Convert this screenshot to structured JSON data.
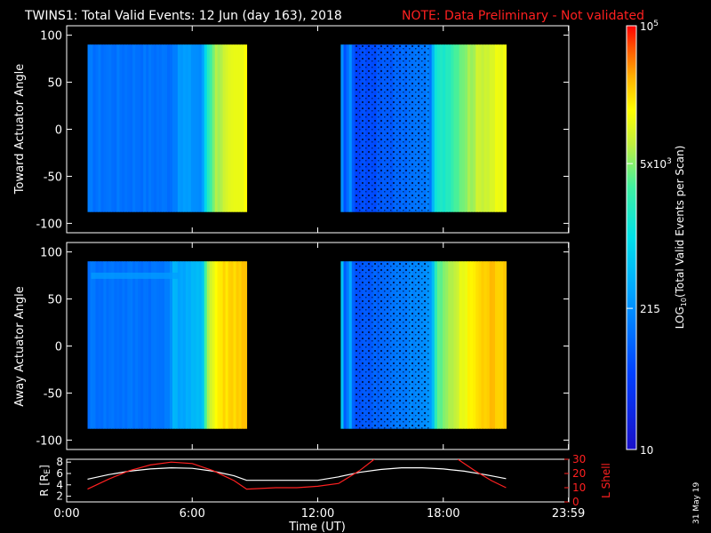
{
  "header": {
    "title": "TWINS1: Total Valid Events: 12 Jun (day 163), 2018",
    "note": "NOTE: Data Preliminary - Not validated"
  },
  "footer": {
    "stamp": "31 May 19"
  },
  "chart_data": [
    {
      "type": "heatmap",
      "panel": "toward",
      "ylabel": "Toward Actuator Angle",
      "ylim": [
        -110,
        110
      ],
      "yticks": [
        100,
        50,
        0,
        -50,
        -100
      ],
      "x_hours": [
        0,
        6,
        12,
        18,
        23.983
      ],
      "xlim": [
        0,
        24
      ],
      "segments": [
        {
          "start": 1.0,
          "end": 8.6,
          "angle_range": [
            -88,
            90
          ],
          "profile": [
            [
              0,
              0.28
            ],
            [
              0.52,
              0.28
            ],
            [
              0.6,
              0.36
            ],
            [
              0.72,
              0.32
            ],
            [
              0.75,
              0.55
            ],
            [
              0.8,
              0.7
            ],
            [
              0.92,
              0.76
            ],
            [
              1,
              0.78
            ]
          ]
        },
        {
          "start": 13.1,
          "end": 21.0,
          "angle_range": [
            -88,
            90
          ],
          "profile": [
            [
              0,
              0.45
            ],
            [
              0.02,
              0.2
            ],
            [
              0.06,
              0.35
            ],
            [
              0.08,
              0.18
            ],
            [
              0.55,
              0.3
            ],
            [
              0.57,
              0.52
            ],
            [
              0.65,
              0.58
            ],
            [
              0.72,
              0.66
            ],
            [
              0.85,
              0.74
            ],
            [
              1,
              0.78
            ]
          ]
        }
      ]
    },
    {
      "type": "heatmap",
      "panel": "away",
      "ylabel": "Away Actuator Angle",
      "ylim": [
        -110,
        110
      ],
      "yticks": [
        100,
        50,
        0,
        -50,
        -100
      ],
      "x_hours": [
        0,
        6,
        12,
        18,
        23.983
      ],
      "xlim": [
        0,
        24
      ],
      "segments": [
        {
          "start": 1.0,
          "end": 8.6,
          "angle_range": [
            -88,
            90
          ],
          "profile": [
            [
              0,
              0.28
            ],
            [
              0.5,
              0.28
            ],
            [
              0.54,
              0.4
            ],
            [
              0.6,
              0.38
            ],
            [
              0.72,
              0.42
            ],
            [
              0.75,
              0.7
            ],
            [
              0.82,
              0.82
            ],
            [
              0.92,
              0.85
            ],
            [
              1,
              0.86
            ]
          ]
        },
        {
          "start": 13.1,
          "end": 21.0,
          "angle_range": [
            -88,
            90
          ],
          "profile": [
            [
              0,
              0.62
            ],
            [
              0.02,
              0.22
            ],
            [
              0.06,
              0.38
            ],
            [
              0.08,
              0.2
            ],
            [
              0.55,
              0.35
            ],
            [
              0.58,
              0.62
            ],
            [
              0.68,
              0.72
            ],
            [
              0.8,
              0.82
            ],
            [
              0.9,
              0.86
            ],
            [
              1,
              0.86
            ]
          ]
        }
      ]
    },
    {
      "type": "line",
      "panel": "orbit",
      "ylabel_left": "R [R",
      "ylabel_left_sub": "E",
      "ylabel_left_close": "]",
      "ylabel_right": "L Shell",
      "xlabel": "Time (UT)",
      "xticklabels": [
        "0:00",
        "6:00",
        "12:00",
        "18:00",
        "23:59"
      ],
      "left_ylim": [
        1,
        8.5
      ],
      "left_yticks": [
        2,
        4,
        6,
        8
      ],
      "right_ylim": [
        0,
        30
      ],
      "right_yticks": [
        0,
        10,
        20,
        30
      ],
      "series": [
        {
          "axis": "left",
          "color": "#ffffff",
          "x": [
            1.0,
            2.0,
            3.0,
            4.0,
            5.0,
            6.0,
            7.0,
            8.0,
            8.6,
            10.0,
            11.0,
            12.0,
            13.0,
            14.0,
            15.0,
            16.0,
            17.0,
            18.0,
            19.0,
            20.0,
            21.0
          ],
          "y": [
            5.0,
            5.8,
            6.4,
            6.8,
            7.0,
            6.9,
            6.4,
            5.6,
            4.8,
            4.8,
            4.8,
            4.8,
            5.4,
            6.2,
            6.7,
            7.0,
            7.0,
            6.8,
            6.4,
            5.8,
            5.1
          ]
        },
        {
          "axis": "right",
          "color": "#ff2020",
          "x": [
            1.0,
            2.0,
            3.0,
            4.0,
            5.0,
            6.0,
            7.0,
            8.0,
            8.6,
            10.0,
            11.0,
            12.0,
            13.0,
            14.0,
            14.7
          ],
          "y": [
            9,
            16,
            22,
            26,
            28,
            27,
            22,
            15,
            9,
            10,
            10,
            11,
            13,
            22,
            30
          ]
        },
        {
          "axis": "right",
          "color": "#ff2020",
          "x": [
            18.7,
            19.5,
            20.3,
            21.0
          ],
          "y": [
            30,
            22,
            15,
            10
          ]
        }
      ]
    },
    {
      "type": "colorbar",
      "label_pre": "LOG",
      "label_sub": "10",
      "label_post": "(Total Valid Events per Scan)",
      "scale": "log",
      "range": [
        10,
        100000
      ],
      "ticks": [
        {
          "value": 100000,
          "mantissa": "10",
          "exponent": "5"
        },
        {
          "value": 5000,
          "mantissa": "5x10",
          "exponent": "3"
        },
        {
          "value": 215,
          "mantissa": "215",
          "exponent": ""
        },
        {
          "value": 10,
          "mantissa": "10",
          "exponent": ""
        }
      ]
    }
  ]
}
